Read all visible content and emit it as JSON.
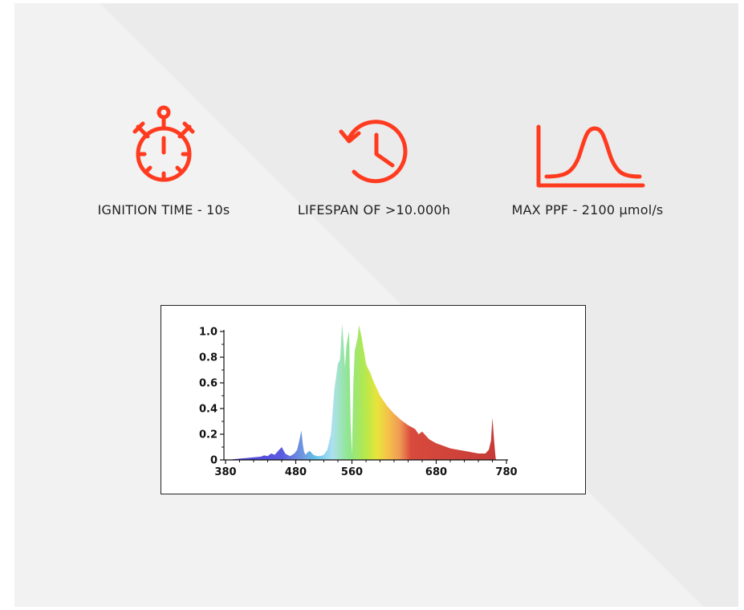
{
  "colors": {
    "accent": "#ff3b1f",
    "text": "#222222"
  },
  "features": [
    {
      "icon": "stopwatch-icon",
      "label": "IGNITION TIME - 10s"
    },
    {
      "icon": "history-clock-icon",
      "label": "LIFESPAN OF >10.000h"
    },
    {
      "icon": "bell-curve-icon",
      "label": "MAX PPF - 2100 µmol/s"
    }
  ],
  "chart_data": {
    "type": "area",
    "title": "",
    "xlabel": "",
    "ylabel": "",
    "xlim": [
      380,
      780
    ],
    "ylim": [
      0,
      1.0
    ],
    "x_ticks": [
      "380",
      "480",
      "560",
      "680",
      "780"
    ],
    "y_ticks": [
      "0",
      "0.2",
      "0.4",
      "0.6",
      "0.8",
      "1.0"
    ],
    "grid": false,
    "series": [
      {
        "x": [
          390,
          400,
          410,
          420,
          430,
          435,
          440,
          445,
          450,
          455,
          460,
          465,
          468,
          472,
          478,
          482,
          485,
          488,
          490,
          492,
          494,
          497,
          500,
          505,
          510,
          515,
          520,
          525,
          530,
          535,
          540,
          543,
          546,
          548,
          550,
          552,
          554,
          556,
          558,
          560,
          562,
          564,
          566,
          568,
          570,
          572,
          574,
          576,
          578,
          580,
          582,
          584,
          586,
          588,
          590,
          595,
          600,
          610,
          620,
          630,
          640,
          650,
          655,
          660,
          665,
          670,
          680,
          690,
          700,
          710,
          720,
          730,
          740,
          750,
          755,
          758,
          760,
          762,
          764,
          765
        ],
        "values": [
          0.005,
          0.01,
          0.015,
          0.02,
          0.025,
          0.035,
          0.03,
          0.05,
          0.04,
          0.07,
          0.1,
          0.05,
          0.04,
          0.03,
          0.05,
          0.08,
          0.15,
          0.23,
          0.12,
          0.06,
          0.04,
          0.06,
          0.07,
          0.04,
          0.03,
          0.03,
          0.04,
          0.08,
          0.2,
          0.55,
          0.75,
          0.78,
          1.06,
          0.92,
          0.72,
          0.88,
          0.95,
          1.0,
          0.3,
          0.04,
          0.6,
          0.85,
          0.9,
          0.95,
          1.05,
          1.0,
          0.95,
          0.88,
          0.82,
          0.75,
          0.72,
          0.7,
          0.68,
          0.65,
          0.62,
          0.56,
          0.5,
          0.42,
          0.36,
          0.31,
          0.27,
          0.24,
          0.2,
          0.22,
          0.19,
          0.16,
          0.13,
          0.11,
          0.09,
          0.08,
          0.07,
          0.06,
          0.05,
          0.05,
          0.08,
          0.15,
          0.33,
          0.18,
          0.05,
          0.0
        ]
      }
    ]
  }
}
